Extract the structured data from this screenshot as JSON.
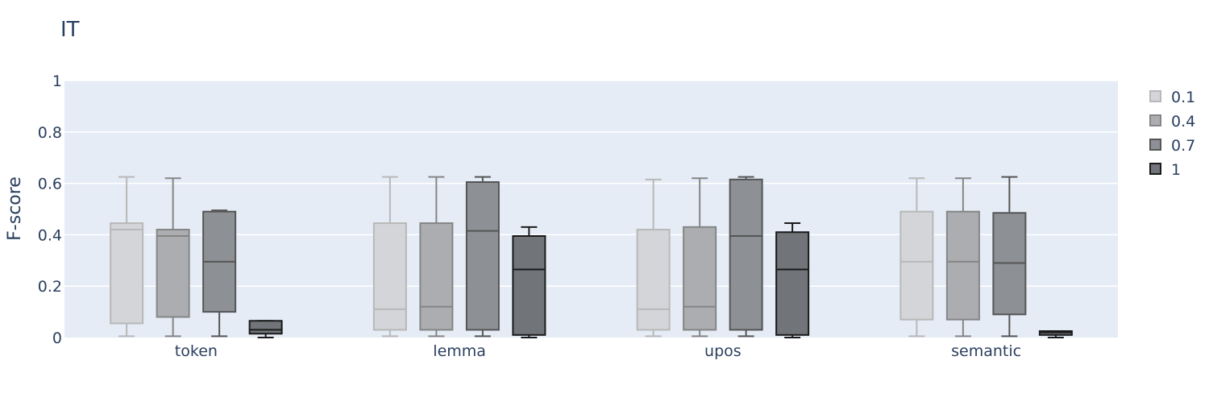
{
  "chart_data": {
    "type": "box",
    "title": "IT",
    "xlabel": "",
    "ylabel": "F-score",
    "ylim": [
      0,
      1
    ],
    "yticks": [
      0,
      0.2,
      0.4,
      0.6,
      0.8,
      1
    ],
    "ytick_labels": [
      "0",
      "0.2",
      "0.4",
      "0.6",
      "0.8",
      "1"
    ],
    "categories": [
      "token",
      "lemma",
      "upos",
      "semantic"
    ],
    "grid": true,
    "legend_position": "right",
    "series": [
      {
        "name": "0.1",
        "fill": "#d3d5d9",
        "stroke": "#b8b8b8",
        "boxes": [
          {
            "min": 0.005,
            "q1": 0.055,
            "median": 0.42,
            "q3": 0.445,
            "max": 0.625
          },
          {
            "min": 0.005,
            "q1": 0.03,
            "median": 0.11,
            "q3": 0.445,
            "max": 0.625
          },
          {
            "min": 0.005,
            "q1": 0.03,
            "median": 0.11,
            "q3": 0.42,
            "max": 0.615
          },
          {
            "min": 0.005,
            "q1": 0.07,
            "median": 0.295,
            "q3": 0.49,
            "max": 0.62
          }
        ]
      },
      {
        "name": "0.4",
        "fill": "#abadb1",
        "stroke": "#858585",
        "boxes": [
          {
            "min": 0.005,
            "q1": 0.08,
            "median": 0.395,
            "q3": 0.42,
            "max": 0.62
          },
          {
            "min": 0.005,
            "q1": 0.03,
            "median": 0.12,
            "q3": 0.445,
            "max": 0.625
          },
          {
            "min": 0.005,
            "q1": 0.03,
            "median": 0.12,
            "q3": 0.43,
            "max": 0.62
          },
          {
            "min": 0.005,
            "q1": 0.07,
            "median": 0.295,
            "q3": 0.49,
            "max": 0.62
          }
        ]
      },
      {
        "name": "0.7",
        "fill": "#8d9095",
        "stroke": "#555555",
        "boxes": [
          {
            "min": 0.005,
            "q1": 0.1,
            "median": 0.295,
            "q3": 0.49,
            "max": 0.495
          },
          {
            "min": 0.005,
            "q1": 0.03,
            "median": 0.415,
            "q3": 0.605,
            "max": 0.625
          },
          {
            "min": 0.005,
            "q1": 0.03,
            "median": 0.395,
            "q3": 0.615,
            "max": 0.625
          },
          {
            "min": 0.005,
            "q1": 0.09,
            "median": 0.29,
            "q3": 0.485,
            "max": 0.625
          }
        ]
      },
      {
        "name": "1",
        "fill": "#717479",
        "stroke": "#1a1a1a",
        "boxes": [
          {
            "min": 0.0,
            "q1": 0.015,
            "median": 0.03,
            "q3": 0.065,
            "max": 0.065
          },
          {
            "min": 0.0,
            "q1": 0.01,
            "median": 0.265,
            "q3": 0.395,
            "max": 0.43
          },
          {
            "min": 0.0,
            "q1": 0.01,
            "median": 0.265,
            "q3": 0.41,
            "max": 0.445
          },
          {
            "min": 0.0,
            "q1": 0.01,
            "median": 0.02,
            "q3": 0.025,
            "max": 0.025
          }
        ]
      }
    ]
  }
}
